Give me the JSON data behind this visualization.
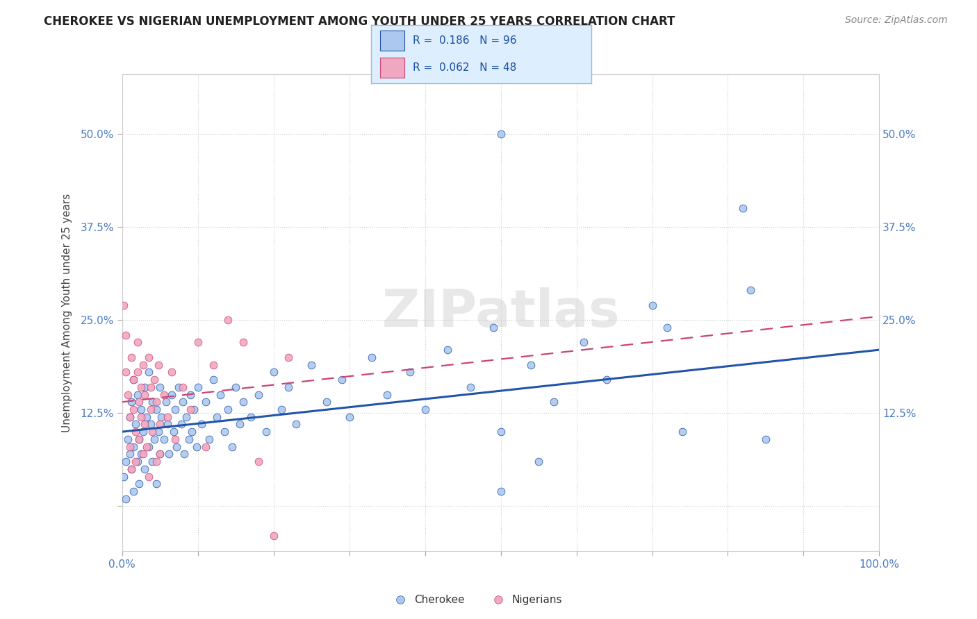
{
  "title": "CHEROKEE VS NIGERIAN UNEMPLOYMENT AMONG YOUTH UNDER 25 YEARS CORRELATION CHART",
  "source": "Source: ZipAtlas.com",
  "ylabel": "Unemployment Among Youth under 25 years",
  "xlim": [
    0.0,
    1.0
  ],
  "ylim": [
    -0.06,
    0.58
  ],
  "xticks": [
    0.0,
    0.1,
    0.2,
    0.3,
    0.4,
    0.5,
    0.6,
    0.7,
    0.8,
    0.9,
    1.0
  ],
  "xticklabels": [
    "0.0%",
    "",
    "",
    "",
    "",
    "",
    "",
    "",
    "",
    "",
    "100.0%"
  ],
  "yticks": [
    0.0,
    0.125,
    0.25,
    0.375,
    0.5
  ],
  "yticklabels": [
    "",
    "12.5%",
    "25.0%",
    "37.5%",
    "50.0%"
  ],
  "cherokee_R": 0.186,
  "cherokee_N": 96,
  "nigerian_R": 0.062,
  "nigerian_N": 48,
  "cherokee_color": "#adc8ee",
  "nigerian_color": "#f0a8c0",
  "cherokee_line_color": "#2255aa",
  "nigerian_line_color": "#cc4477",
  "watermark": "ZIPatlas",
  "legend_box_color": "#ddeeff",
  "legend_border_color": "#99bbdd",
  "cherokee_scatter": [
    [
      0.002,
      0.04
    ],
    [
      0.005,
      0.06
    ],
    [
      0.005,
      0.01
    ],
    [
      0.008,
      0.09
    ],
    [
      0.01,
      0.12
    ],
    [
      0.01,
      0.07
    ],
    [
      0.012,
      0.05
    ],
    [
      0.012,
      0.14
    ],
    [
      0.015,
      0.08
    ],
    [
      0.015,
      0.02
    ],
    [
      0.015,
      0.17
    ],
    [
      0.018,
      0.11
    ],
    [
      0.02,
      0.06
    ],
    [
      0.02,
      0.15
    ],
    [
      0.022,
      0.09
    ],
    [
      0.022,
      0.03
    ],
    [
      0.025,
      0.13
    ],
    [
      0.025,
      0.07
    ],
    [
      0.028,
      0.1
    ],
    [
      0.03,
      0.16
    ],
    [
      0.03,
      0.05
    ],
    [
      0.032,
      0.12
    ],
    [
      0.035,
      0.08
    ],
    [
      0.035,
      0.18
    ],
    [
      0.038,
      0.11
    ],
    [
      0.04,
      0.14
    ],
    [
      0.04,
      0.06
    ],
    [
      0.042,
      0.09
    ],
    [
      0.045,
      0.13
    ],
    [
      0.045,
      0.03
    ],
    [
      0.048,
      0.1
    ],
    [
      0.05,
      0.16
    ],
    [
      0.05,
      0.07
    ],
    [
      0.052,
      0.12
    ],
    [
      0.055,
      0.09
    ],
    [
      0.058,
      0.14
    ],
    [
      0.06,
      0.11
    ],
    [
      0.062,
      0.07
    ],
    [
      0.065,
      0.15
    ],
    [
      0.068,
      0.1
    ],
    [
      0.07,
      0.13
    ],
    [
      0.072,
      0.08
    ],
    [
      0.075,
      0.16
    ],
    [
      0.078,
      0.11
    ],
    [
      0.08,
      0.14
    ],
    [
      0.082,
      0.07
    ],
    [
      0.085,
      0.12
    ],
    [
      0.088,
      0.09
    ],
    [
      0.09,
      0.15
    ],
    [
      0.092,
      0.1
    ],
    [
      0.095,
      0.13
    ],
    [
      0.098,
      0.08
    ],
    [
      0.1,
      0.16
    ],
    [
      0.105,
      0.11
    ],
    [
      0.11,
      0.14
    ],
    [
      0.115,
      0.09
    ],
    [
      0.12,
      0.17
    ],
    [
      0.125,
      0.12
    ],
    [
      0.13,
      0.15
    ],
    [
      0.135,
      0.1
    ],
    [
      0.14,
      0.13
    ],
    [
      0.145,
      0.08
    ],
    [
      0.15,
      0.16
    ],
    [
      0.155,
      0.11
    ],
    [
      0.16,
      0.14
    ],
    [
      0.17,
      0.12
    ],
    [
      0.18,
      0.15
    ],
    [
      0.19,
      0.1
    ],
    [
      0.2,
      0.18
    ],
    [
      0.21,
      0.13
    ],
    [
      0.22,
      0.16
    ],
    [
      0.23,
      0.11
    ],
    [
      0.25,
      0.19
    ],
    [
      0.27,
      0.14
    ],
    [
      0.29,
      0.17
    ],
    [
      0.3,
      0.12
    ],
    [
      0.33,
      0.2
    ],
    [
      0.35,
      0.15
    ],
    [
      0.38,
      0.18
    ],
    [
      0.4,
      0.13
    ],
    [
      0.43,
      0.21
    ],
    [
      0.46,
      0.16
    ],
    [
      0.49,
      0.24
    ],
    [
      0.5,
      0.1
    ],
    [
      0.5,
      0.5
    ],
    [
      0.54,
      0.19
    ],
    [
      0.57,
      0.14
    ],
    [
      0.61,
      0.22
    ],
    [
      0.64,
      0.17
    ],
    [
      0.7,
      0.27
    ],
    [
      0.72,
      0.24
    ],
    [
      0.74,
      0.1
    ],
    [
      0.82,
      0.4
    ],
    [
      0.83,
      0.29
    ],
    [
      0.85,
      0.09
    ],
    [
      0.5,
      0.02
    ],
    [
      0.55,
      0.06
    ]
  ],
  "nigerian_scatter": [
    [
      0.002,
      0.27
    ],
    [
      0.005,
      0.23
    ],
    [
      0.005,
      0.18
    ],
    [
      0.008,
      0.15
    ],
    [
      0.01,
      0.12
    ],
    [
      0.01,
      0.08
    ],
    [
      0.012,
      0.2
    ],
    [
      0.012,
      0.05
    ],
    [
      0.015,
      0.17
    ],
    [
      0.015,
      0.13
    ],
    [
      0.018,
      0.1
    ],
    [
      0.018,
      0.06
    ],
    [
      0.02,
      0.22
    ],
    [
      0.02,
      0.18
    ],
    [
      0.022,
      0.14
    ],
    [
      0.022,
      0.09
    ],
    [
      0.025,
      0.16
    ],
    [
      0.025,
      0.12
    ],
    [
      0.028,
      0.19
    ],
    [
      0.028,
      0.07
    ],
    [
      0.03,
      0.15
    ],
    [
      0.03,
      0.11
    ],
    [
      0.032,
      0.08
    ],
    [
      0.035,
      0.2
    ],
    [
      0.035,
      0.04
    ],
    [
      0.038,
      0.16
    ],
    [
      0.038,
      0.13
    ],
    [
      0.04,
      0.1
    ],
    [
      0.042,
      0.17
    ],
    [
      0.045,
      0.14
    ],
    [
      0.045,
      0.06
    ],
    [
      0.048,
      0.19
    ],
    [
      0.05,
      0.11
    ],
    [
      0.05,
      0.07
    ],
    [
      0.055,
      0.15
    ],
    [
      0.06,
      0.12
    ],
    [
      0.065,
      0.18
    ],
    [
      0.07,
      0.09
    ],
    [
      0.08,
      0.16
    ],
    [
      0.09,
      0.13
    ],
    [
      0.1,
      0.22
    ],
    [
      0.11,
      0.08
    ],
    [
      0.12,
      0.19
    ],
    [
      0.14,
      0.25
    ],
    [
      0.16,
      0.22
    ],
    [
      0.18,
      0.06
    ],
    [
      0.2,
      -0.04
    ],
    [
      0.22,
      0.2
    ]
  ]
}
